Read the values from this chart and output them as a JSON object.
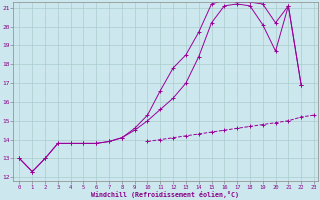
{
  "title": "",
  "xlabel": "Windchill (Refroidissement éolien,°C)",
  "ylabel": "",
  "background_color": "#cce8ee",
  "grid_color": "#aacccc",
  "line_color": "#990099",
  "x_min": 0,
  "x_max": 23,
  "y_min": 12,
  "y_max": 21,
  "line1_x": [
    0,
    1,
    2,
    3,
    4,
    5,
    6,
    7,
    8,
    9,
    10,
    11,
    12,
    13,
    14,
    15,
    16,
    17,
    18,
    19,
    20,
    21,
    22,
    23
  ],
  "line1_y": [
    13.0,
    12.3,
    13.0,
    13.8,
    13.8,
    13.8,
    13.8,
    13.9,
    14.1,
    14.6,
    15.3,
    16.6,
    17.8,
    18.5,
    19.7,
    21.2,
    21.4,
    21.3,
    21.3,
    21.2,
    20.2,
    21.1,
    16.9,
    null
  ],
  "line2_x": [
    0,
    1,
    2,
    3,
    4,
    5,
    6,
    7,
    8,
    9,
    10,
    11,
    12,
    13,
    14,
    15,
    16,
    17,
    18,
    19,
    20,
    21,
    22,
    23
  ],
  "line2_y": [
    13.0,
    12.3,
    13.0,
    13.8,
    13.8,
    13.8,
    13.8,
    13.9,
    14.1,
    14.5,
    15.0,
    15.6,
    16.2,
    17.0,
    18.4,
    20.2,
    21.1,
    21.2,
    21.1,
    20.1,
    18.7,
    21.1,
    16.9,
    null
  ],
  "line3_x": [
    0,
    1,
    2,
    3,
    4,
    5,
    6,
    7,
    8,
    9,
    10,
    11,
    12,
    13,
    14,
    15,
    16,
    17,
    18,
    19,
    20,
    21,
    22,
    23
  ],
  "line3_y": [
    null,
    null,
    null,
    null,
    null,
    null,
    null,
    null,
    null,
    null,
    13.9,
    14.0,
    14.1,
    14.2,
    14.3,
    14.4,
    14.5,
    14.6,
    14.7,
    14.8,
    14.9,
    15.0,
    15.2,
    15.3
  ]
}
